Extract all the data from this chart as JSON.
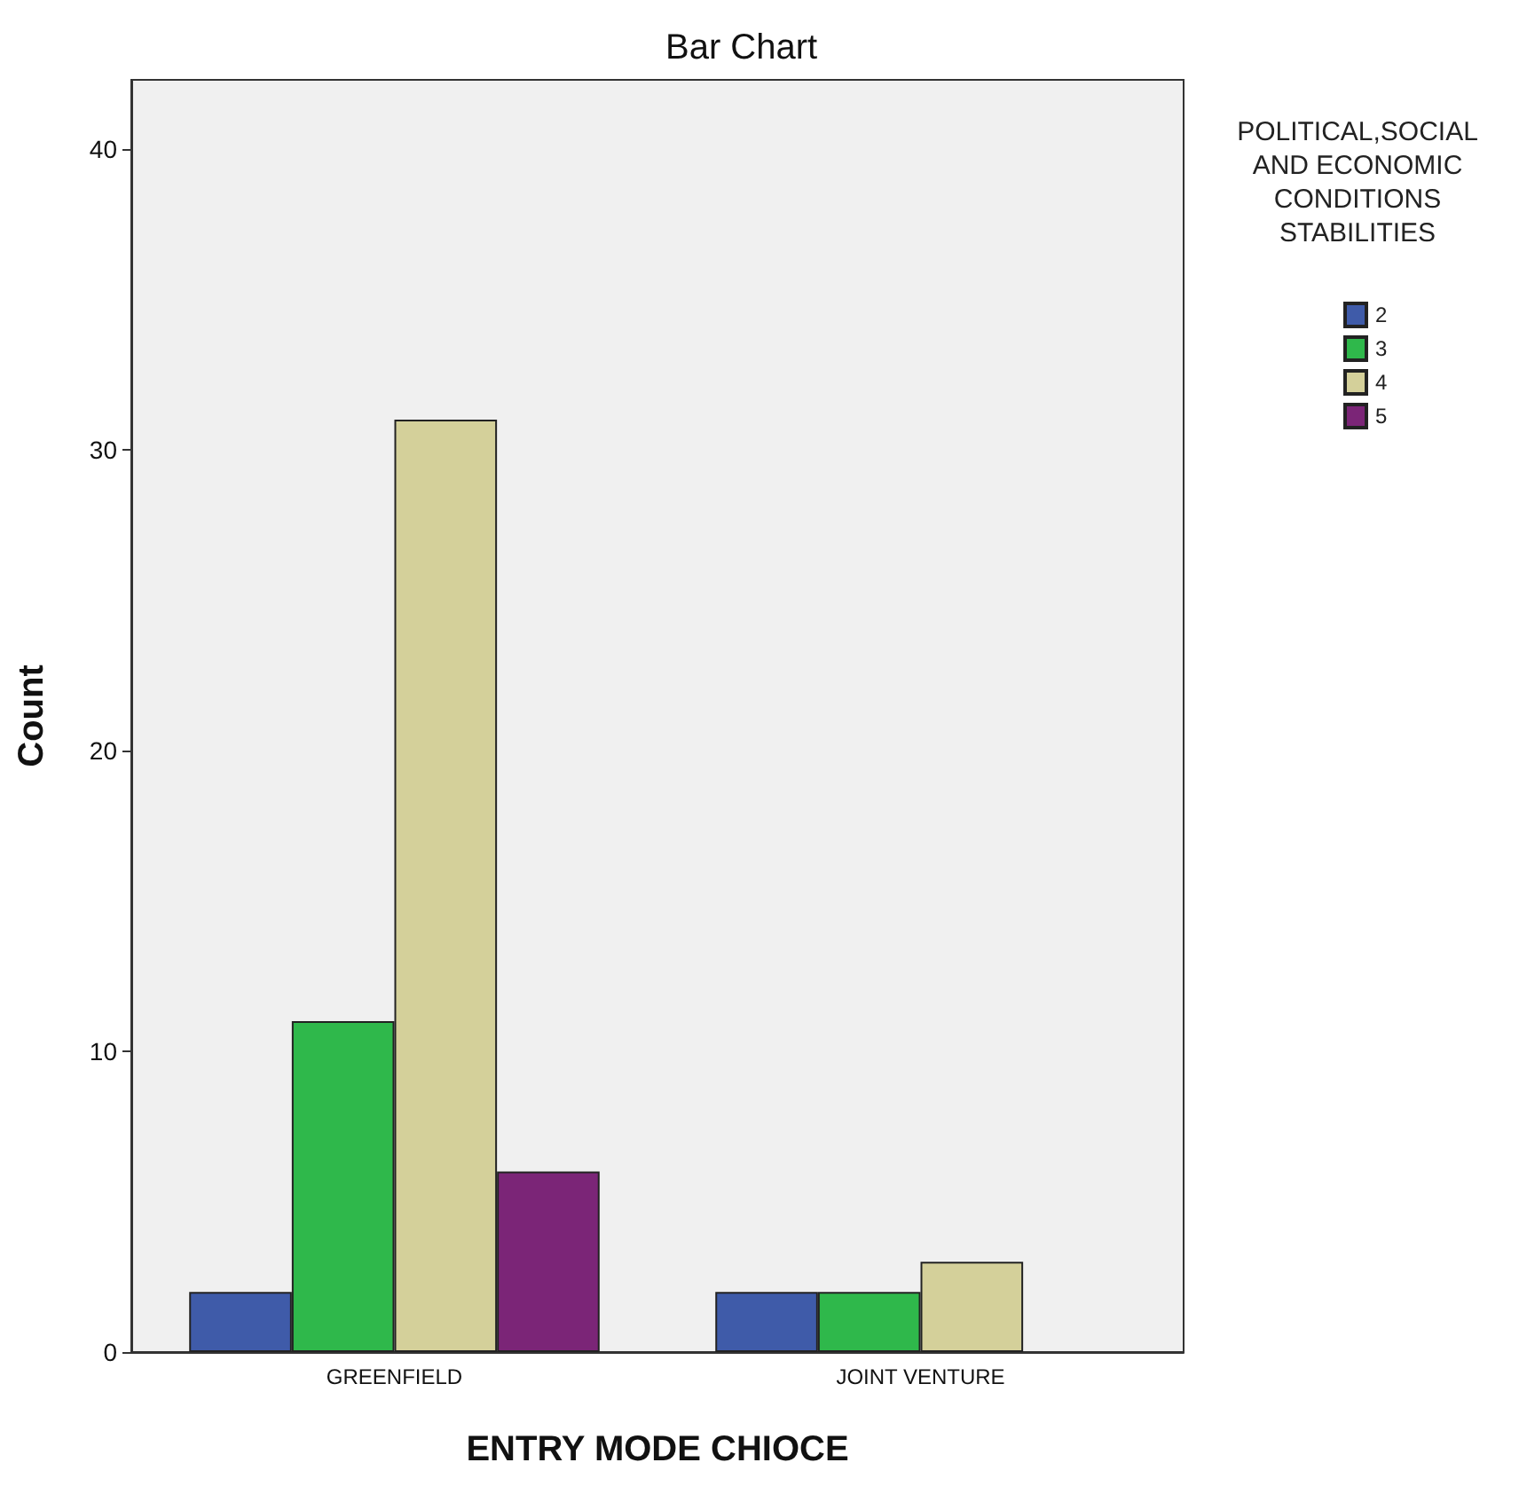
{
  "chart_data": {
    "type": "bar",
    "title": "Bar Chart",
    "xlabel": "ENTRY MODE CHIOCE",
    "ylabel": "Count",
    "legend_title": "POLITICAL,SOCIAL\nAND ECONOMIC\nCONDITIONS\nSTABILITIES",
    "categories": [
      "GREENFIELD",
      "JOINT VENTURE"
    ],
    "series": [
      {
        "name": "2",
        "color": "#3f5ba9",
        "values": [
          2,
          2
        ]
      },
      {
        "name": "3",
        "color": "#2fb84b",
        "values": [
          11,
          2
        ]
      },
      {
        "name": "4",
        "color": "#d4d09a",
        "values": [
          31,
          3
        ]
      },
      {
        "name": "5",
        "color": "#7b2577",
        "values": [
          6,
          null
        ]
      }
    ],
    "ylim": [
      0,
      42.3
    ],
    "yticks": [
      0,
      10,
      20,
      30,
      40
    ],
    "grid": false,
    "legend": "right"
  }
}
